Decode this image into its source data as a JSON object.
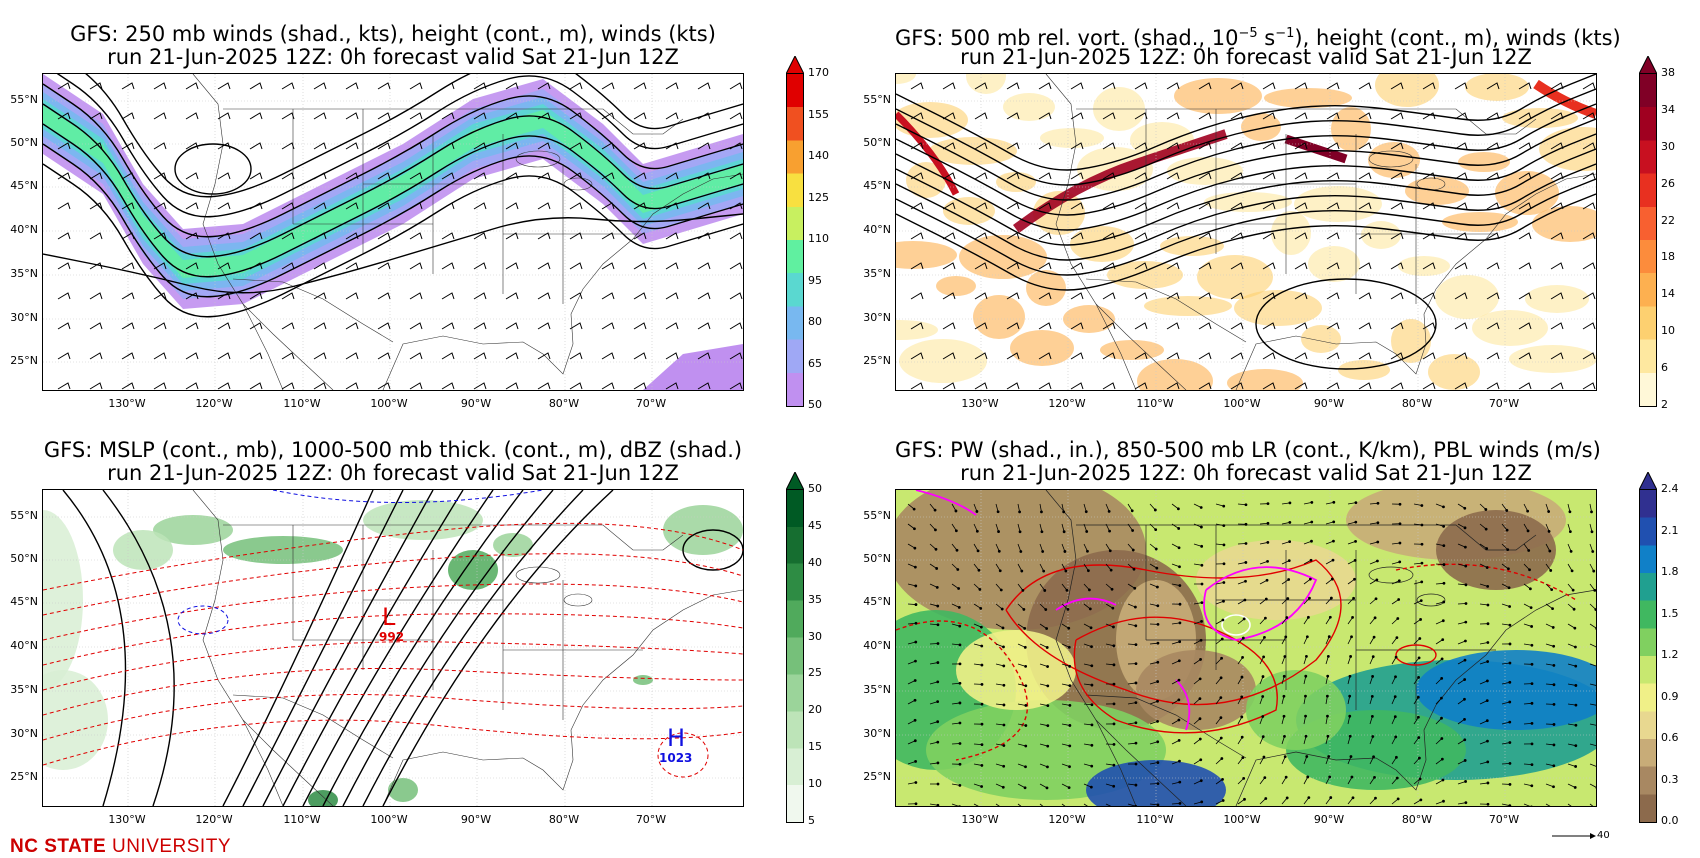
{
  "panels": [
    {
      "title1": "GFS: 250 mb winds (shad., kts), height (cont., m), winds (kts)",
      "title2": "run 21-Jun-2025 12Z: 0h forecast valid Sat 21-Jun 12Z",
      "colorbar_ticks": [
        "170",
        "155",
        "140",
        "125",
        "110",
        "95",
        "80",
        "65",
        "50"
      ],
      "colors": [
        "#c090f0",
        "#9fa8f5",
        "#78b8f0",
        "#5ad8d0",
        "#60f0a0",
        "#c8f060",
        "#f8e040",
        "#f8a030",
        "#f05020",
        "#e00000"
      ],
      "top_arrow_color": "#e00000"
    },
    {
      "title1": "GFS: 500 mb rel. vort. (shad., 10",
      "title1_sup1": "−5",
      "title1_mid": " s",
      "title1_sup2": "−1",
      "title1_end": "), height (cont., m), winds (kts)",
      "title2": "run 21-Jun-2025 12Z: 0h forecast valid Sat 21-Jun 12Z",
      "colorbar_ticks": [
        "38",
        "34",
        "30",
        "26",
        "22",
        "18",
        "14",
        "10",
        "6",
        "2"
      ],
      "colors": [
        "#fff8d8",
        "#fee8a0",
        "#fdd070",
        "#fdb050",
        "#fc8c3c",
        "#f86030",
        "#e83020",
        "#c81020",
        "#a00020",
        "#800026"
      ],
      "top_arrow_color": "#800026"
    },
    {
      "title1": "GFS: MSLP (cont., mb), 1000-500 mb thick. (cont., m), dBZ (shad.)",
      "title2": "run 21-Jun-2025 12Z: 0h forecast valid Sat 21-Jun 12Z",
      "colorbar_ticks": [
        "50",
        "45",
        "40",
        "35",
        "30",
        "25",
        "20",
        "15",
        "10",
        "5"
      ],
      "colors": [
        "#f0f8ee",
        "#d8efd4",
        "#bde4b8",
        "#9bd49a",
        "#76c07a",
        "#50aa5c",
        "#2e8c44",
        "#166e30",
        "#005a24"
      ],
      "top_arrow_color": "#005a24",
      "low_label": "L",
      "low_value": "992",
      "high_label": "H",
      "high_value": "1023"
    },
    {
      "title1": "GFS: PW (shad., in.), 850-500 mb LR (cont., K/km), PBL winds (m/s)",
      "title2": "run 21-Jun-2025 12Z: 0h forecast valid Sat 21-Jun 12Z",
      "colorbar_ticks": [
        "2.4",
        "2.1",
        "1.8",
        "1.5",
        "1.2",
        "0.9",
        "0.6",
        "0.3",
        "0.0"
      ],
      "colors": [
        "#8c6a4c",
        "#a88862",
        "#c8ac78",
        "#e8d890",
        "#f0f088",
        "#c8e870",
        "#80d060",
        "#40b860",
        "#20a090",
        "#1080c8",
        "#2050b0",
        "#303090"
      ],
      "top_arrow_color": "#303090",
      "quiver_key": "40"
    }
  ],
  "lat_labels": [
    "55°N",
    "50°N",
    "45°N",
    "40°N",
    "35°N",
    "30°N",
    "25°N"
  ],
  "lon_labels": [
    "130°W",
    "120°W",
    "110°W",
    "100°W",
    "90°W",
    "80°W",
    "70°W"
  ],
  "footer": {
    "bold": "NC STATE",
    "light": "UNIVERSITY"
  }
}
